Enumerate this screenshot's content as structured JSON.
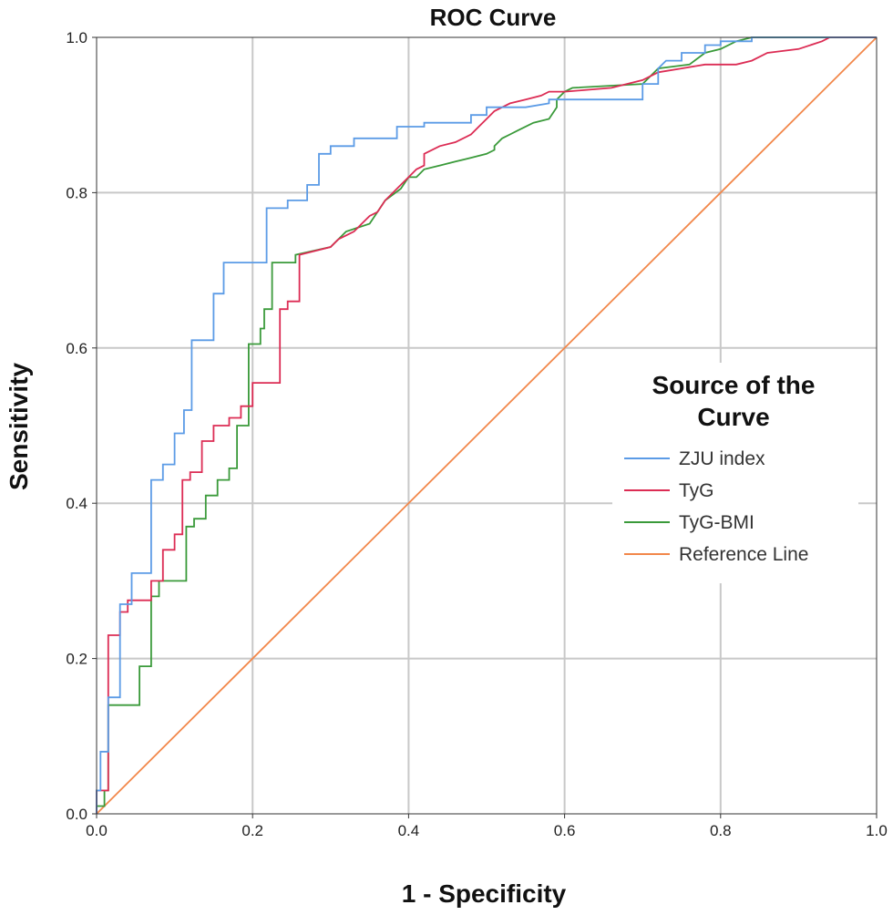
{
  "chart_data": {
    "type": "line",
    "title": "ROC Curve",
    "xlabel": "1 - Specificity",
    "ylabel": "Sensitivity",
    "xlim": [
      0,
      1
    ],
    "ylim": [
      0,
      1
    ],
    "xticks": [
      "0.0",
      "0.2",
      "0.4",
      "0.6",
      "0.8",
      "1.0"
    ],
    "yticks": [
      "0.0",
      "0.2",
      "0.4",
      "0.6",
      "0.8",
      "1.0"
    ],
    "grid": true,
    "legend": {
      "title_line1": "Source of the",
      "title_line2": "Curve",
      "placement": "right-center"
    },
    "series": [
      {
        "name": "ZJU index",
        "color": "#5B9BE6",
        "points": [
          [
            0,
            0
          ],
          [
            0,
            0.03
          ],
          [
            0.005,
            0.03
          ],
          [
            0.005,
            0.08
          ],
          [
            0.015,
            0.08
          ],
          [
            0.015,
            0.15
          ],
          [
            0.03,
            0.15
          ],
          [
            0.03,
            0.27
          ],
          [
            0.045,
            0.27
          ],
          [
            0.045,
            0.31
          ],
          [
            0.07,
            0.31
          ],
          [
            0.07,
            0.43
          ],
          [
            0.085,
            0.43
          ],
          [
            0.085,
            0.45
          ],
          [
            0.1,
            0.45
          ],
          [
            0.1,
            0.49
          ],
          [
            0.112,
            0.49
          ],
          [
            0.112,
            0.52
          ],
          [
            0.122,
            0.52
          ],
          [
            0.122,
            0.61
          ],
          [
            0.15,
            0.61
          ],
          [
            0.15,
            0.67
          ],
          [
            0.163,
            0.67
          ],
          [
            0.163,
            0.71
          ],
          [
            0.218,
            0.71
          ],
          [
            0.218,
            0.78
          ],
          [
            0.245,
            0.78
          ],
          [
            0.245,
            0.79
          ],
          [
            0.27,
            0.79
          ],
          [
            0.27,
            0.81
          ],
          [
            0.285,
            0.81
          ],
          [
            0.285,
            0.85
          ],
          [
            0.3,
            0.85
          ],
          [
            0.3,
            0.86
          ],
          [
            0.33,
            0.86
          ],
          [
            0.33,
            0.87
          ],
          [
            0.385,
            0.87
          ],
          [
            0.385,
            0.885
          ],
          [
            0.42,
            0.885
          ],
          [
            0.42,
            0.89
          ],
          [
            0.45,
            0.89
          ],
          [
            0.48,
            0.89
          ],
          [
            0.48,
            0.9
          ],
          [
            0.5,
            0.9
          ],
          [
            0.5,
            0.91
          ],
          [
            0.55,
            0.91
          ],
          [
            0.58,
            0.915
          ],
          [
            0.58,
            0.92
          ],
          [
            0.7,
            0.92
          ],
          [
            0.7,
            0.94
          ],
          [
            0.72,
            0.94
          ],
          [
            0.72,
            0.96
          ],
          [
            0.73,
            0.97
          ],
          [
            0.75,
            0.97
          ],
          [
            0.75,
            0.98
          ],
          [
            0.78,
            0.98
          ],
          [
            0.78,
            0.99
          ],
          [
            0.8,
            0.99
          ],
          [
            0.8,
            0.995
          ],
          [
            0.84,
            0.995
          ],
          [
            0.84,
            1.0
          ],
          [
            1,
            1
          ]
        ]
      },
      {
        "name": "TyG",
        "color": "#DC2C54",
        "points": [
          [
            0,
            0
          ],
          [
            0,
            0.03
          ],
          [
            0.015,
            0.03
          ],
          [
            0.015,
            0.23
          ],
          [
            0.03,
            0.23
          ],
          [
            0.03,
            0.26
          ],
          [
            0.04,
            0.26
          ],
          [
            0.04,
            0.275
          ],
          [
            0.07,
            0.275
          ],
          [
            0.07,
            0.3
          ],
          [
            0.085,
            0.3
          ],
          [
            0.085,
            0.34
          ],
          [
            0.1,
            0.34
          ],
          [
            0.1,
            0.36
          ],
          [
            0.11,
            0.36
          ],
          [
            0.11,
            0.43
          ],
          [
            0.12,
            0.43
          ],
          [
            0.12,
            0.44
          ],
          [
            0.135,
            0.44
          ],
          [
            0.135,
            0.48
          ],
          [
            0.15,
            0.48
          ],
          [
            0.15,
            0.5
          ],
          [
            0.17,
            0.5
          ],
          [
            0.17,
            0.51
          ],
          [
            0.185,
            0.51
          ],
          [
            0.185,
            0.525
          ],
          [
            0.2,
            0.525
          ],
          [
            0.2,
            0.555
          ],
          [
            0.235,
            0.555
          ],
          [
            0.235,
            0.65
          ],
          [
            0.245,
            0.65
          ],
          [
            0.245,
            0.66
          ],
          [
            0.26,
            0.66
          ],
          [
            0.26,
            0.72
          ],
          [
            0.3,
            0.73
          ],
          [
            0.31,
            0.74
          ],
          [
            0.32,
            0.745
          ],
          [
            0.33,
            0.75
          ],
          [
            0.34,
            0.76
          ],
          [
            0.35,
            0.77
          ],
          [
            0.36,
            0.775
          ],
          [
            0.37,
            0.79
          ],
          [
            0.38,
            0.8
          ],
          [
            0.39,
            0.81
          ],
          [
            0.4,
            0.82
          ],
          [
            0.41,
            0.83
          ],
          [
            0.42,
            0.835
          ],
          [
            0.42,
            0.85
          ],
          [
            0.44,
            0.86
          ],
          [
            0.46,
            0.865
          ],
          [
            0.47,
            0.87
          ],
          [
            0.48,
            0.875
          ],
          [
            0.49,
            0.885
          ],
          [
            0.5,
            0.895
          ],
          [
            0.51,
            0.905
          ],
          [
            0.52,
            0.91
          ],
          [
            0.53,
            0.915
          ],
          [
            0.55,
            0.92
          ],
          [
            0.57,
            0.925
          ],
          [
            0.58,
            0.93
          ],
          [
            0.6,
            0.93
          ],
          [
            0.66,
            0.935
          ],
          [
            0.68,
            0.94
          ],
          [
            0.7,
            0.945
          ],
          [
            0.72,
            0.955
          ],
          [
            0.75,
            0.96
          ],
          [
            0.78,
            0.965
          ],
          [
            0.82,
            0.965
          ],
          [
            0.84,
            0.97
          ],
          [
            0.86,
            0.98
          ],
          [
            0.9,
            0.985
          ],
          [
            0.93,
            0.995
          ],
          [
            0.94,
            1.0
          ],
          [
            1,
            1
          ]
        ]
      },
      {
        "name": "TyG-BMI",
        "color": "#3A9A3A",
        "points": [
          [
            0,
            0
          ],
          [
            0,
            0.01
          ],
          [
            0.01,
            0.01
          ],
          [
            0.01,
            0.03
          ],
          [
            0.015,
            0.03
          ],
          [
            0.015,
            0.14
          ],
          [
            0.055,
            0.14
          ],
          [
            0.055,
            0.19
          ],
          [
            0.07,
            0.19
          ],
          [
            0.07,
            0.28
          ],
          [
            0.08,
            0.28
          ],
          [
            0.08,
            0.3
          ],
          [
            0.115,
            0.3
          ],
          [
            0.115,
            0.37
          ],
          [
            0.125,
            0.37
          ],
          [
            0.125,
            0.38
          ],
          [
            0.14,
            0.38
          ],
          [
            0.14,
            0.41
          ],
          [
            0.155,
            0.41
          ],
          [
            0.155,
            0.43
          ],
          [
            0.17,
            0.43
          ],
          [
            0.17,
            0.445
          ],
          [
            0.18,
            0.445
          ],
          [
            0.18,
            0.5
          ],
          [
            0.195,
            0.5
          ],
          [
            0.195,
            0.605
          ],
          [
            0.21,
            0.605
          ],
          [
            0.21,
            0.625
          ],
          [
            0.215,
            0.625
          ],
          [
            0.215,
            0.65
          ],
          [
            0.225,
            0.65
          ],
          [
            0.225,
            0.71
          ],
          [
            0.255,
            0.71
          ],
          [
            0.255,
            0.72
          ],
          [
            0.3,
            0.73
          ],
          [
            0.32,
            0.75
          ],
          [
            0.35,
            0.76
          ],
          [
            0.37,
            0.79
          ],
          [
            0.39,
            0.805
          ],
          [
            0.4,
            0.82
          ],
          [
            0.41,
            0.82
          ],
          [
            0.42,
            0.83
          ],
          [
            0.44,
            0.835
          ],
          [
            0.46,
            0.84
          ],
          [
            0.48,
            0.845
          ],
          [
            0.5,
            0.85
          ],
          [
            0.51,
            0.855
          ],
          [
            0.51,
            0.86
          ],
          [
            0.52,
            0.87
          ],
          [
            0.53,
            0.875
          ],
          [
            0.54,
            0.88
          ],
          [
            0.56,
            0.89
          ],
          [
            0.58,
            0.895
          ],
          [
            0.59,
            0.91
          ],
          [
            0.59,
            0.92
          ],
          [
            0.6,
            0.93
          ],
          [
            0.61,
            0.935
          ],
          [
            0.7,
            0.94
          ],
          [
            0.72,
            0.96
          ],
          [
            0.76,
            0.965
          ],
          [
            0.78,
            0.98
          ],
          [
            0.8,
            0.985
          ],
          [
            0.82,
            0.995
          ],
          [
            0.84,
            1.0
          ],
          [
            1,
            1
          ]
        ]
      },
      {
        "name": "Reference Line",
        "color": "#F2874A",
        "points": [
          [
            0,
            0
          ],
          [
            1,
            1
          ]
        ]
      }
    ]
  }
}
